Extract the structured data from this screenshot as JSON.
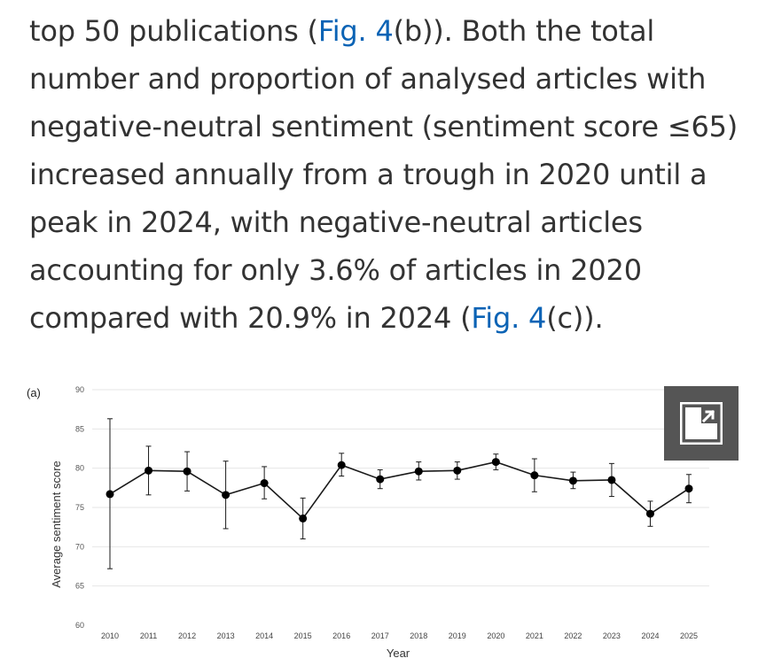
{
  "article": {
    "line1_pre": "top 50 publications (",
    "line1_link": "Fig. 4",
    "line1_post": "(b)). Both the total",
    "line2": "number and proportion of analysed articles with",
    "line3": "negative-neutral sentiment (sentiment score ≤65)",
    "line4": "increased annually from a trough in 2020 until a",
    "line5": "peak in 2024, with negative-neutral articles",
    "line6": "accounting for only 3.6% of articles in 2020",
    "line7_pre": "compared with 20.9% in 2024 (",
    "line7_link": "Fig. 4",
    "line7_post": "(c))."
  },
  "expand_button": {
    "icon": "expand-icon"
  },
  "colors": {
    "link": "#0b63b5",
    "text": "#333333",
    "line": "#1a1a1a",
    "grid": "#e6e6e6",
    "button_bg": "#555555"
  },
  "chart_data": {
    "type": "line",
    "panel_label": "(a)",
    "xlabel": "Year",
    "ylabel": "Average sentiment score",
    "ylim": [
      60,
      90
    ],
    "yticks": [
      60,
      65,
      70,
      75,
      80,
      85,
      90
    ],
    "grid": true,
    "x": [
      "2010",
      "2011",
      "2012",
      "2013",
      "2014",
      "2015",
      "2016",
      "2017",
      "2018",
      "2019",
      "2020",
      "2021",
      "2022",
      "2023",
      "2024",
      "2025"
    ],
    "series": [
      {
        "values": [
          76.7,
          79.7,
          79.6,
          76.6,
          78.1,
          73.6,
          80.4,
          78.6,
          79.6,
          79.7,
          80.8,
          79.1,
          78.4,
          78.5,
          74.2,
          77.4
        ],
        "error_low": [
          67.2,
          76.6,
          77.1,
          72.3,
          76.1,
          71.0,
          79.0,
          77.4,
          78.5,
          78.6,
          79.8,
          77.0,
          77.4,
          76.4,
          72.6,
          75.6
        ],
        "error_high": [
          86.3,
          82.8,
          82.1,
          80.9,
          80.2,
          76.2,
          81.9,
          79.8,
          80.8,
          80.8,
          81.8,
          81.2,
          79.5,
          80.6,
          75.8,
          79.2
        ]
      }
    ]
  }
}
